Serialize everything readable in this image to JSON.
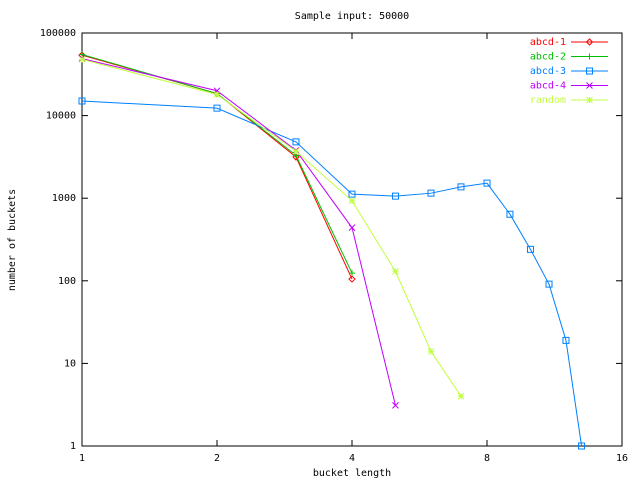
{
  "chart_data": {
    "type": "line",
    "title": "Sample input: 50000",
    "x_label": "bucket length",
    "y_label": "number of buckets",
    "log_x": true,
    "log_y": true,
    "xlim": [
      1,
      16
    ],
    "xticks": [
      1,
      2,
      4,
      8,
      16
    ],
    "ylim": [
      1,
      100000
    ],
    "yticks": [
      1,
      10,
      100,
      1000,
      10000,
      100000
    ],
    "legend": "top-right",
    "series": [
      {
        "name": "abcd-1",
        "color": "#ff0000",
        "marker": "diamond",
        "x": [
          1,
          2,
          3,
          4
        ],
        "values": [
          54000,
          18500,
          3150,
          105
        ]
      },
      {
        "name": "abcd-2",
        "color": "#00c000",
        "marker": "plus",
        "x": [
          1,
          2,
          3,
          4
        ],
        "values": [
          55000,
          18500,
          3300,
          124
        ]
      },
      {
        "name": "abcd-3",
        "color": "#0080ff",
        "marker": "square",
        "x": [
          1,
          2,
          3,
          4,
          5,
          6,
          7,
          8,
          9,
          10,
          11,
          12,
          13
        ],
        "values": [
          15000,
          12300,
          4800,
          1120,
          1060,
          1150,
          1370,
          1520,
          640,
          240,
          91,
          19,
          1
        ]
      },
      {
        "name": "abcd-4",
        "color": "#c000ff",
        "marker": "cross",
        "x": [
          1,
          2,
          3,
          4,
          5
        ],
        "values": [
          49000,
          20000,
          3800,
          440,
          3.1
        ]
      },
      {
        "name": "random",
        "color": "#c0ff40",
        "marker": "star",
        "x": [
          1,
          2,
          3,
          4,
          5,
          6,
          7
        ],
        "values": [
          48000,
          18000,
          3700,
          930,
          130,
          14,
          4
        ]
      }
    ]
  }
}
